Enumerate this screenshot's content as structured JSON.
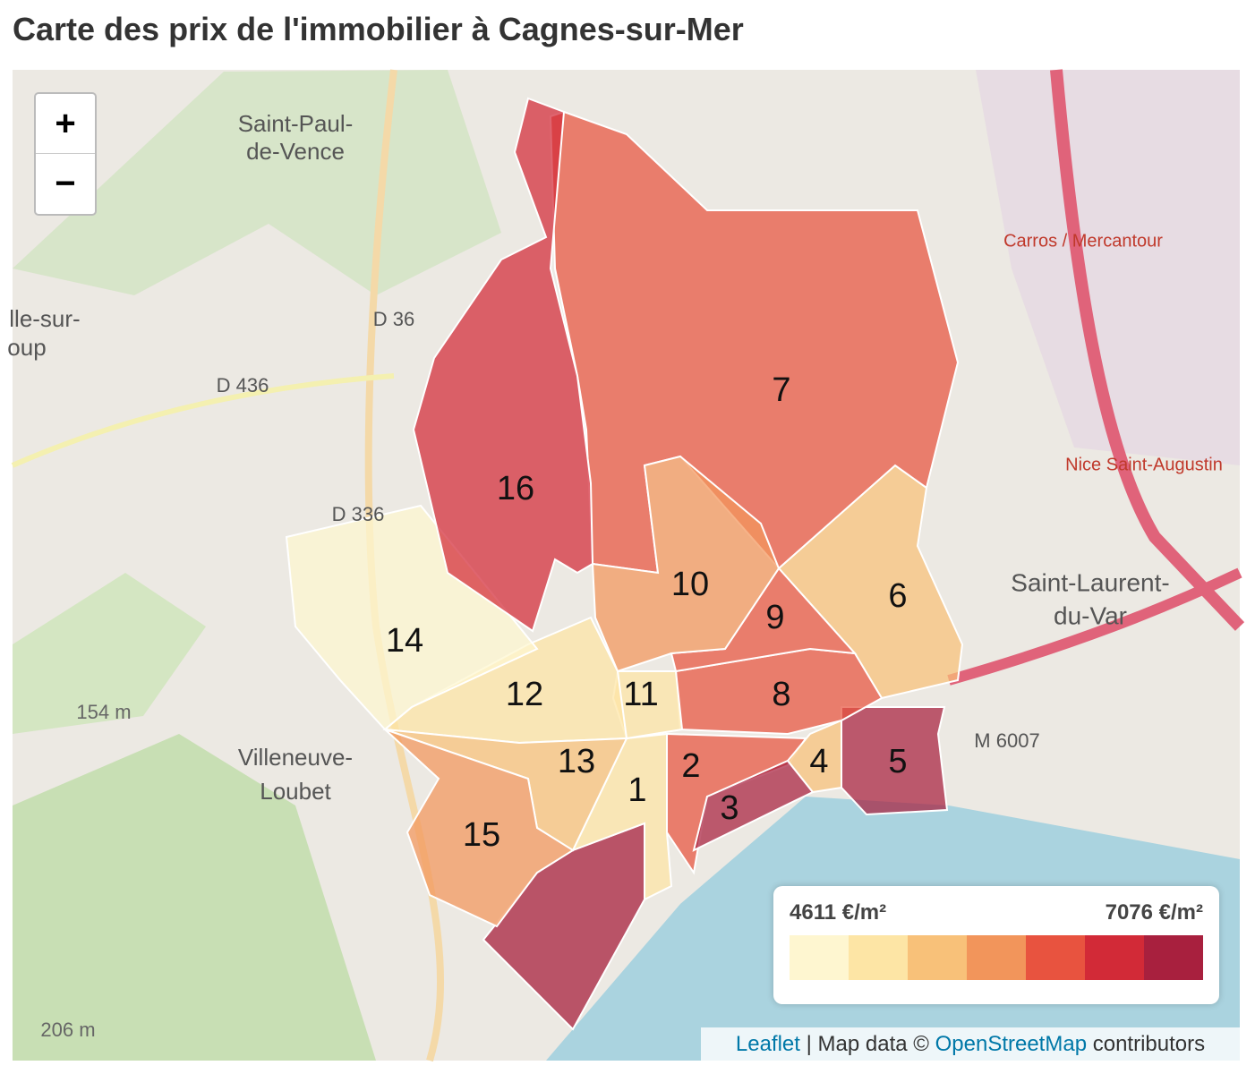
{
  "header": {
    "title": "Carte des prix de l'immobilier à Cagnes-sur-Mer"
  },
  "zoom": {
    "in": "+",
    "out": "−"
  },
  "districts": [
    {
      "label": "1",
      "color": "#fde5a5"
    },
    {
      "label": "2",
      "color": "#e8533f"
    },
    {
      "label": "3",
      "color": "#a8203e"
    },
    {
      "label": "4",
      "color": "#f8c179"
    },
    {
      "label": "5",
      "color": "#a8203e"
    },
    {
      "label": "6",
      "color": "#f8c179"
    },
    {
      "label": "7",
      "color": "#e8533f"
    },
    {
      "label": "8",
      "color": "#e8533f"
    },
    {
      "label": "9",
      "color": "#e8533f"
    },
    {
      "label": "10",
      "color": "#f2955b"
    },
    {
      "label": "11",
      "color": "#fde5a5"
    },
    {
      "label": "12",
      "color": "#fde5a5"
    },
    {
      "label": "13",
      "color": "#f8c179"
    },
    {
      "label": "14",
      "color": "#fef6d0"
    },
    {
      "label": "15",
      "color": "#f2955b"
    },
    {
      "label": "16",
      "color": "#d22a37"
    }
  ],
  "legend": {
    "min_label": "4611 €/m²",
    "max_label": "7076 €/m²",
    "colors": [
      "#fef6d0",
      "#fde5a5",
      "#f8c179",
      "#f2955b",
      "#e8533f",
      "#d22a37",
      "#a8203e"
    ]
  },
  "places": [
    "Saint-Paul-",
    "de-Vence",
    "Villeneuve-",
    "Loubet",
    "Saint-Laurent-",
    "du-Var",
    "D 36",
    "D 436",
    "D 336",
    "M 6007",
    "154 m",
    "206 m",
    "Carros / Mercantour",
    "Nice Saint-Augustin",
    "lle-sur-",
    "oup"
  ],
  "attribution": {
    "leaflet": "Leaflet",
    "sep": "| Map data ©",
    "osm": "OpenStreetMap",
    "tail": "contributors"
  }
}
